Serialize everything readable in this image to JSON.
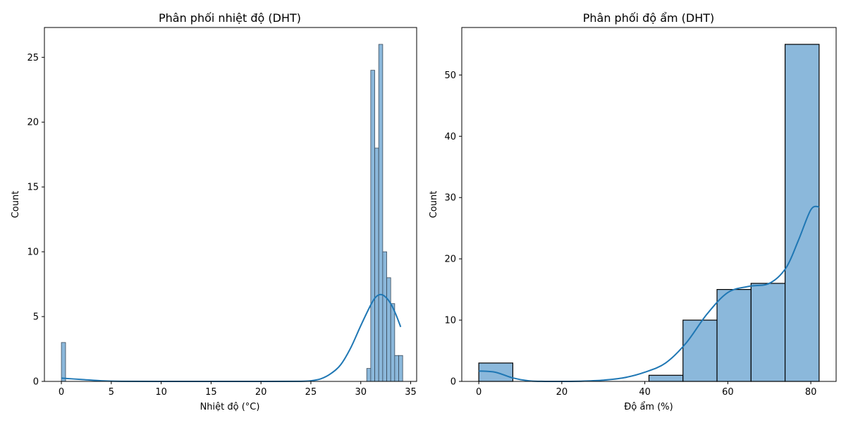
{
  "colors": {
    "bar_fill": "#8bb8db",
    "bar_edge": "#3a4a5a",
    "kde_line": "#1f77b4",
    "axis": "#000000"
  },
  "chart_data": [
    {
      "type": "bar",
      "title": "Phân phối nhiệt độ (DHT)",
      "xlabel": "Nhiệt độ (°C)",
      "ylabel": "Count",
      "xlim": [
        -1.7,
        35.6
      ],
      "ylim": [
        0,
        27.3
      ],
      "xticks": [
        0,
        5,
        10,
        15,
        20,
        25,
        30,
        35
      ],
      "yticks": [
        0,
        5,
        10,
        15,
        20,
        25
      ],
      "grid": false,
      "bins": [
        {
          "x0": 0.0,
          "x1": 0.42,
          "count": 3
        },
        {
          "x0": 30.6,
          "x1": 31.0,
          "count": 1
        },
        {
          "x0": 31.0,
          "x1": 31.4,
          "count": 24
        },
        {
          "x0": 31.4,
          "x1": 31.8,
          "count": 18
        },
        {
          "x0": 31.8,
          "x1": 32.2,
          "count": 26
        },
        {
          "x0": 32.2,
          "x1": 32.6,
          "count": 10
        },
        {
          "x0": 32.6,
          "x1": 33.0,
          "count": 8
        },
        {
          "x0": 33.0,
          "x1": 33.4,
          "count": 6
        },
        {
          "x0": 33.4,
          "x1": 33.8,
          "count": 2
        },
        {
          "x0": 33.8,
          "x1": 34.2,
          "count": 2
        }
      ],
      "kde": {
        "x": [
          0,
          2,
          4,
          6,
          10,
          15,
          20,
          24,
          25,
          26,
          27,
          28,
          29,
          30,
          31,
          31.5,
          32,
          32.5,
          33,
          33.5,
          34
        ],
        "y": [
          0.25,
          0.15,
          0.05,
          0.01,
          0,
          0,
          0,
          0.01,
          0.05,
          0.2,
          0.6,
          1.3,
          2.6,
          4.3,
          5.9,
          6.5,
          6.7,
          6.5,
          6.0,
          5.2,
          4.2
        ]
      }
    },
    {
      "type": "bar",
      "title": "Phân phối độ ẩm (DHT)",
      "xlabel": "Độ ẩm (%)",
      "ylabel": "Count",
      "xlim": [
        -4.1,
        86.1
      ],
      "ylim": [
        0,
        57.75
      ],
      "xticks": [
        0,
        20,
        40,
        60,
        80
      ],
      "yticks": [
        0,
        10,
        20,
        30,
        40,
        50
      ],
      "grid": false,
      "bins": [
        {
          "x0": 0.0,
          "x1": 8.2,
          "count": 3
        },
        {
          "x0": 8.2,
          "x1": 16.4,
          "count": 0
        },
        {
          "x0": 16.4,
          "x1": 24.6,
          "count": 0
        },
        {
          "x0": 24.6,
          "x1": 32.8,
          "count": 0
        },
        {
          "x0": 32.8,
          "x1": 41.0,
          "count": 0
        },
        {
          "x0": 41.0,
          "x1": 49.2,
          "count": 1
        },
        {
          "x0": 49.2,
          "x1": 57.4,
          "count": 10
        },
        {
          "x0": 57.4,
          "x1": 65.6,
          "count": 15
        },
        {
          "x0": 65.6,
          "x1": 73.8,
          "count": 16
        },
        {
          "x0": 73.8,
          "x1": 82.0,
          "count": 55
        }
      ],
      "kde": {
        "x": [
          0,
          4,
          8,
          12,
          16,
          20,
          25,
          30,
          35,
          40,
          45,
          50,
          55,
          60,
          65,
          70,
          74,
          77,
          80,
          82
        ],
        "y": [
          1.7,
          1.5,
          0.6,
          0.1,
          0,
          0,
          0.05,
          0.2,
          0.6,
          1.5,
          3.0,
          6.3,
          11.0,
          14.5,
          15.5,
          16.0,
          18.5,
          23.0,
          28.0,
          28.5
        ]
      }
    }
  ]
}
